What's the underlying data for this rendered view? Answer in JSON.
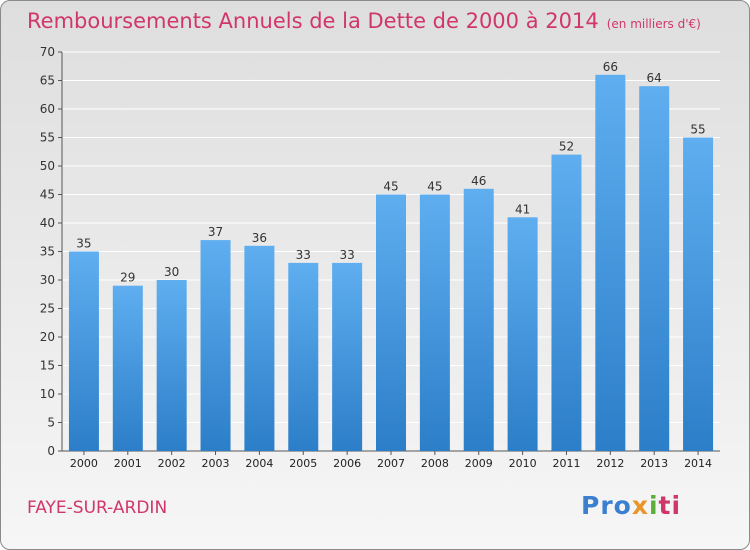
{
  "page": {
    "title": "Remboursements Annuels de la Dette de 2000 à 2014",
    "unit_note": "(en milliers d'€)",
    "town": "FAYE-SUR-ARDIN",
    "logo": {
      "p1": "Pro",
      "p2": "x",
      "p3": "i",
      "p4": "ti"
    }
  },
  "colors": {
    "bar_top": "#5eaef0",
    "bar_bottom": "#2c7ec8",
    "title": "#d1366b",
    "grid": "#ffffff"
  },
  "chart_data": {
    "type": "bar",
    "title": "Remboursements Annuels de la Dette de 2000 à 2014",
    "xlabel": "",
    "ylabel": "",
    "categories": [
      "2000",
      "2001",
      "2002",
      "2003",
      "2004",
      "2005",
      "2006",
      "2007",
      "2008",
      "2009",
      "2010",
      "2011",
      "2012",
      "2013",
      "2014"
    ],
    "values": [
      35,
      29,
      30,
      37,
      36,
      33,
      33,
      45,
      45,
      46,
      41,
      52,
      66,
      64,
      55
    ],
    "ylim": [
      0,
      70
    ],
    "yticks": [
      0,
      5,
      10,
      15,
      20,
      25,
      30,
      35,
      40,
      45,
      50,
      55,
      60,
      65,
      70
    ],
    "grid": true
  }
}
